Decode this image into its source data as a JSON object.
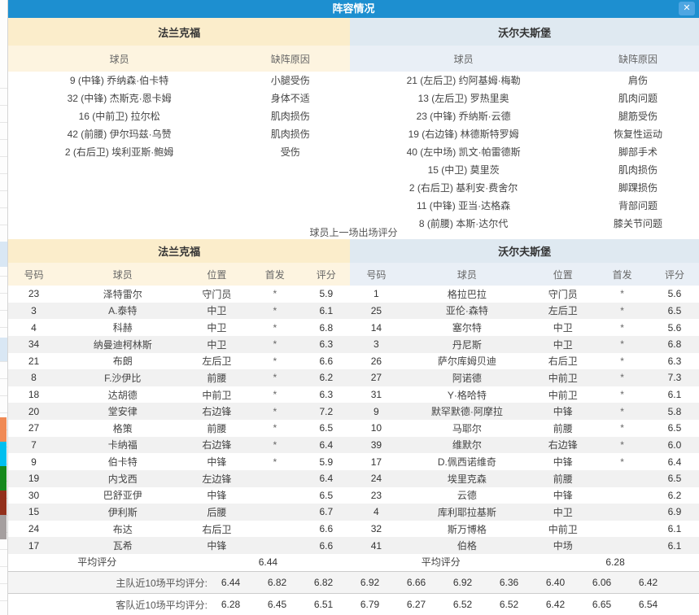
{
  "modal": {
    "title": "阵容情况",
    "close_icon": "✕"
  },
  "colors": {
    "titlebar": "#1d8fd0",
    "home_header": "#fbedcb",
    "home_subheader": "#fdf4e0",
    "away_header": "#dfe9f1",
    "away_subheader": "#e9eff6",
    "row_alt": "#f1f1f1",
    "strip_blocks": [
      "#f08a55",
      "#00bfef",
      "#15891c",
      "#93301c",
      "#a59f9f"
    ]
  },
  "injury": {
    "columns": {
      "player": "球员",
      "reason": "缺阵原因"
    },
    "home": {
      "team": "法兰克福",
      "rows": [
        {
          "player": "9 (中锋) 乔纳森·伯卡特",
          "reason": "小腿受伤"
        },
        {
          "player": "32 (中锋) 杰斯克·恩卡姆",
          "reason": "身体不适"
        },
        {
          "player": "16 (中前卫) 拉尔松",
          "reason": "肌肉损伤"
        },
        {
          "player": "42 (前腰) 伊尔玛兹·乌赞",
          "reason": "肌肉损伤"
        },
        {
          "player": "2 (右后卫) 埃利亚斯·鲍姆",
          "reason": "受伤"
        }
      ]
    },
    "away": {
      "team": "沃尔夫斯堡",
      "rows": [
        {
          "player": "21 (左后卫) 约阿基姆·梅勒",
          "reason": "肩伤"
        },
        {
          "player": "13 (左后卫) 罗热里奥",
          "reason": "肌肉问题"
        },
        {
          "player": "23 (中锋) 乔纳斯·云德",
          "reason": "腿筋受伤"
        },
        {
          "player": "19 (右边锋) 林德斯特罗姆",
          "reason": "恢复性运动"
        },
        {
          "player": "40 (左中场) 凯文·帕雷德斯",
          "reason": "脚部手术"
        },
        {
          "player": "15 (中卫) 莫里茨",
          "reason": "肌肉损伤"
        },
        {
          "player": "2 (右后卫) 基利安·费舍尔",
          "reason": "脚踝损伤"
        },
        {
          "player": "11 (中锋) 亚当·达格森",
          "reason": "背部问题"
        },
        {
          "player": "8 (前腰) 本斯·达尔代",
          "reason": "膝关节问题"
        }
      ]
    }
  },
  "ratings": {
    "title": "球员上一场出场评分",
    "columns": {
      "number": "号码",
      "player": "球员",
      "position": "位置",
      "starter": "首发",
      "rating": "评分"
    },
    "home": {
      "team": "法兰克福",
      "avg_label": "平均评分",
      "avg_value": "6.44",
      "rows": [
        {
          "number": "23",
          "player": "泽特雷尔",
          "position": "守门员",
          "starter": "*",
          "rating": "5.9"
        },
        {
          "number": "3",
          "player": "A.泰特",
          "position": "中卫",
          "starter": "*",
          "rating": "6.1"
        },
        {
          "number": "4",
          "player": "科赫",
          "position": "中卫",
          "starter": "*",
          "rating": "6.8"
        },
        {
          "number": "34",
          "player": "纳曼迪柯林斯",
          "position": "中卫",
          "starter": "*",
          "rating": "6.3"
        },
        {
          "number": "21",
          "player": "布朗",
          "position": "左后卫",
          "starter": "*",
          "rating": "6.6"
        },
        {
          "number": "8",
          "player": "F.沙伊比",
          "position": "前腰",
          "starter": "*",
          "rating": "6.2"
        },
        {
          "number": "18",
          "player": "达胡德",
          "position": "中前卫",
          "starter": "*",
          "rating": "6.3"
        },
        {
          "number": "20",
          "player": "堂安律",
          "position": "右边锋",
          "starter": "*",
          "rating": "7.2"
        },
        {
          "number": "27",
          "player": "格策",
          "position": "前腰",
          "starter": "*",
          "rating": "6.5"
        },
        {
          "number": "7",
          "player": "卡纳福",
          "position": "右边锋",
          "starter": "*",
          "rating": "6.4"
        },
        {
          "number": "9",
          "player": "伯卡特",
          "position": "中锋",
          "starter": "*",
          "rating": "5.9"
        },
        {
          "number": "19",
          "player": "内戈西",
          "position": "左边锋",
          "starter": "",
          "rating": "6.4"
        },
        {
          "number": "30",
          "player": "巴舒亚伊",
          "position": "中锋",
          "starter": "",
          "rating": "6.5"
        },
        {
          "number": "15",
          "player": "伊利斯",
          "position": "后腰",
          "starter": "",
          "rating": "6.7"
        },
        {
          "number": "24",
          "player": "布达",
          "position": "右后卫",
          "starter": "",
          "rating": "6.6"
        },
        {
          "number": "17",
          "player": "瓦希",
          "position": "中锋",
          "starter": "",
          "rating": "6.6"
        }
      ]
    },
    "away": {
      "team": "沃尔夫斯堡",
      "avg_label": "平均评分",
      "avg_value": "6.28",
      "rows": [
        {
          "number": "1",
          "player": "格拉巴拉",
          "position": "守门员",
          "starter": "*",
          "rating": "5.6"
        },
        {
          "number": "25",
          "player": "亚伦·森特",
          "position": "左后卫",
          "starter": "*",
          "rating": "6.5"
        },
        {
          "number": "14",
          "player": "塞尔特",
          "position": "中卫",
          "starter": "*",
          "rating": "5.6"
        },
        {
          "number": "3",
          "player": "丹尼斯",
          "position": "中卫",
          "starter": "*",
          "rating": "6.8"
        },
        {
          "number": "26",
          "player": "萨尔库姆贝迪",
          "position": "右后卫",
          "starter": "*",
          "rating": "6.3"
        },
        {
          "number": "27",
          "player": "阿诺德",
          "position": "中前卫",
          "starter": "*",
          "rating": "7.3"
        },
        {
          "number": "31",
          "player": "Y·格哈特",
          "position": "中前卫",
          "starter": "*",
          "rating": "6.1"
        },
        {
          "number": "9",
          "player": "默罕默德·阿摩拉",
          "position": "中锋",
          "starter": "*",
          "rating": "5.8"
        },
        {
          "number": "10",
          "player": "马耶尔",
          "position": "前腰",
          "starter": "*",
          "rating": "6.5"
        },
        {
          "number": "39",
          "player": "维默尔",
          "position": "右边锋",
          "starter": "*",
          "rating": "6.0"
        },
        {
          "number": "17",
          "player": "D.佩西诺维奇",
          "position": "中锋",
          "starter": "*",
          "rating": "6.4"
        },
        {
          "number": "24",
          "player": "埃里克森",
          "position": "前腰",
          "starter": "",
          "rating": "6.5"
        },
        {
          "number": "23",
          "player": "云德",
          "position": "中锋",
          "starter": "",
          "rating": "6.2"
        },
        {
          "number": "4",
          "player": "库利耶拉基斯",
          "position": "中卫",
          "starter": "",
          "rating": "6.9"
        },
        {
          "number": "32",
          "player": "斯万博格",
          "position": "中前卫",
          "starter": "",
          "rating": "6.1"
        },
        {
          "number": "41",
          "player": "伯格",
          "position": "中场",
          "starter": "",
          "rating": "6.1"
        }
      ]
    }
  },
  "footer": {
    "home_label": "主队近10场平均评分:",
    "home_values": [
      "6.44",
      "6.82",
      "6.82",
      "6.92",
      "6.66",
      "6.92",
      "6.36",
      "6.40",
      "6.06",
      "6.42"
    ],
    "away_label": "客队近10场平均评分:",
    "away_values": [
      "6.28",
      "6.45",
      "6.51",
      "6.79",
      "6.27",
      "6.52",
      "6.52",
      "6.42",
      "6.65",
      "6.54"
    ]
  }
}
